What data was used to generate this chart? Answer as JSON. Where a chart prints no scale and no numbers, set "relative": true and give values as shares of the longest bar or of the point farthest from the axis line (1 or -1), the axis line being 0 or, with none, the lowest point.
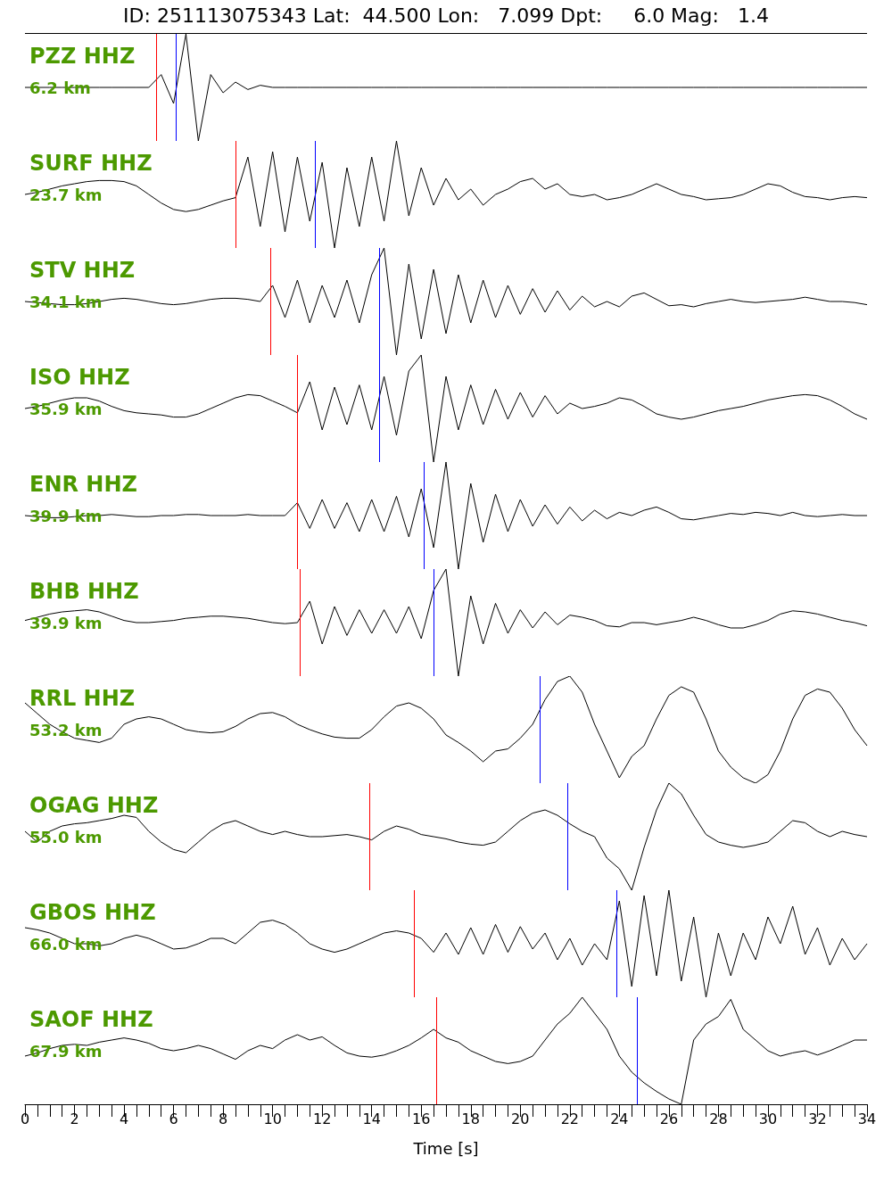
{
  "chart_data": [
    {
      "type": "line",
      "title": "PZZ HHZ",
      "subtitle": "6.2 km",
      "annotations": [
        "ID: 251113075343 Lat:  44.500 Lon:   7.099 Dpt:     6.0 Mag:   1.4"
      ],
      "relative": true,
      "tick_labels": false,
      "xlim": [
        0,
        34
      ],
      "x": [
        0,
        0.5,
        1,
        1.5,
        2,
        2.5,
        3,
        3.5,
        4,
        4.5,
        5,
        5.5,
        6,
        6.5,
        7,
        7.5,
        8,
        8.5,
        9,
        9.5,
        10,
        10.5,
        11,
        11.5,
        12,
        12.5,
        13,
        13.5,
        14,
        14.5,
        15,
        15.5,
        16,
        16.5,
        17,
        17.5,
        18,
        18.5,
        19,
        19.5,
        20,
        20.5,
        21,
        21.5,
        22,
        22.5,
        23,
        23.5,
        24,
        24.5,
        25,
        25.5,
        26,
        26.5,
        27,
        27.5,
        28,
        28.5,
        29,
        29.5,
        30,
        30.5,
        31,
        31.5,
        32,
        32.5,
        33,
        33.5,
        34
      ],
      "series": [
        {
          "color": "#000000",
          "values": [
            0.5,
            0.5,
            0.5,
            0.5,
            0.5,
            0.5,
            0.5,
            0.5,
            0.5,
            0.5,
            0.5,
            0.62,
            0.35,
            1.0,
            0.0,
            0.62,
            0.45,
            0.55,
            0.48,
            0.52,
            0.5,
            0.5,
            0.5,
            0.5,
            0.5,
            0.5,
            0.5,
            0.5,
            0.5,
            0.5,
            0.5,
            0.5,
            0.5,
            0.5,
            0.5,
            0.5,
            0.5,
            0.5,
            0.5,
            0.5,
            0.5,
            0.5,
            0.5,
            0.5,
            0.5,
            0.5,
            0.5,
            0.5,
            0.5,
            0.5,
            0.5,
            0.5,
            0.5,
            0.5,
            0.5,
            0.5,
            0.5,
            0.5,
            0.5,
            0.5,
            0.5,
            0.5,
            0.5,
            0.5,
            0.5,
            0.5,
            0.5,
            0.5,
            0.5
          ]
        }
      ],
      "ref_lines": [
        {
          "axis": "x",
          "value": 5.3,
          "color": "#ff0000"
        },
        {
          "axis": "x",
          "value": 6.1,
          "color": "#0000ff"
        }
      ]
    },
    {
      "type": "line",
      "title": "SURF HHZ",
      "subtitle": "23.7 km",
      "relative": true,
      "tick_labels": false,
      "xlim": [
        0,
        34
      ],
      "x": [
        0,
        0.5,
        1,
        1.5,
        2,
        2.5,
        3,
        3.5,
        4,
        4.5,
        5,
        5.5,
        6,
        6.5,
        7,
        7.5,
        8,
        8.5,
        9,
        9.5,
        10,
        10.5,
        11,
        11.5,
        12,
        12.5,
        13,
        13.5,
        14,
        14.5,
        15,
        15.5,
        16,
        16.5,
        17,
        17.5,
        18,
        18.5,
        19,
        19.5,
        20,
        20.5,
        21,
        21.5,
        22,
        22.5,
        23,
        23.5,
        24,
        24.5,
        25,
        25.5,
        26,
        26.5,
        27,
        27.5,
        28,
        28.5,
        29,
        29.5,
        30,
        30.5,
        31,
        31.5,
        32,
        32.5,
        33,
        33.5,
        34
      ],
      "series": [
        {
          "color": "#000000",
          "values": [
            0.5,
            0.52,
            0.55,
            0.58,
            0.6,
            0.62,
            0.63,
            0.63,
            0.62,
            0.58,
            0.5,
            0.42,
            0.36,
            0.34,
            0.36,
            0.4,
            0.44,
            0.47,
            0.85,
            0.2,
            0.9,
            0.15,
            0.85,
            0.25,
            0.8,
            0.0,
            0.75,
            0.2,
            0.85,
            0.25,
            1.0,
            0.3,
            0.75,
            0.4,
            0.65,
            0.45,
            0.55,
            0.4,
            0.5,
            0.55,
            0.62,
            0.65,
            0.55,
            0.6,
            0.5,
            0.48,
            0.5,
            0.45,
            0.47,
            0.5,
            0.55,
            0.6,
            0.55,
            0.5,
            0.48,
            0.45,
            0.46,
            0.47,
            0.5,
            0.55,
            0.6,
            0.58,
            0.52,
            0.48,
            0.47,
            0.45,
            0.47,
            0.48,
            0.47
          ]
        }
      ],
      "ref_lines": [
        {
          "axis": "x",
          "value": 8.5,
          "color": "#ff0000"
        },
        {
          "axis": "x",
          "value": 11.7,
          "color": "#0000ff"
        }
      ]
    },
    {
      "type": "line",
      "title": "STV HHZ",
      "subtitle": "34.1 km",
      "relative": true,
      "tick_labels": false,
      "xlim": [
        0,
        34
      ],
      "x": [
        0,
        0.5,
        1,
        1.5,
        2,
        2.5,
        3,
        3.5,
        4,
        4.5,
        5,
        5.5,
        6,
        6.5,
        7,
        7.5,
        8,
        8.5,
        9,
        9.5,
        10,
        10.5,
        11,
        11.5,
        12,
        12.5,
        13,
        13.5,
        14,
        14.5,
        15,
        15.5,
        16,
        16.5,
        17,
        17.5,
        18,
        18.5,
        19,
        19.5,
        20,
        20.5,
        21,
        21.5,
        22,
        22.5,
        23,
        23.5,
        24,
        24.5,
        25,
        25.5,
        26,
        26.5,
        27,
        27.5,
        28,
        28.5,
        29,
        29.5,
        30,
        30.5,
        31,
        31.5,
        32,
        32.5,
        33,
        33.5,
        34
      ],
      "series": [
        {
          "color": "#000000",
          "values": [
            0.5,
            0.49,
            0.48,
            0.47,
            0.47,
            0.48,
            0.5,
            0.52,
            0.53,
            0.52,
            0.5,
            0.48,
            0.47,
            0.48,
            0.5,
            0.52,
            0.53,
            0.53,
            0.52,
            0.5,
            0.65,
            0.35,
            0.7,
            0.3,
            0.65,
            0.35,
            0.7,
            0.3,
            0.75,
            1.0,
            0.0,
            0.85,
            0.15,
            0.8,
            0.2,
            0.75,
            0.3,
            0.7,
            0.35,
            0.65,
            0.38,
            0.62,
            0.4,
            0.6,
            0.42,
            0.55,
            0.45,
            0.5,
            0.45,
            0.55,
            0.58,
            0.52,
            0.46,
            0.47,
            0.45,
            0.48,
            0.5,
            0.52,
            0.5,
            0.49,
            0.5,
            0.51,
            0.52,
            0.54,
            0.52,
            0.5,
            0.5,
            0.49,
            0.47
          ]
        }
      ],
      "ref_lines": [
        {
          "axis": "x",
          "value": 9.9,
          "color": "#ff0000"
        },
        {
          "axis": "x",
          "value": 14.3,
          "color": "#0000ff"
        }
      ]
    },
    {
      "type": "line",
      "title": "ISO HHZ",
      "subtitle": "35.9 km",
      "relative": true,
      "tick_labels": false,
      "xlim": [
        0,
        34
      ],
      "x": [
        0,
        0.5,
        1,
        1.5,
        2,
        2.5,
        3,
        3.5,
        4,
        4.5,
        5,
        5.5,
        6,
        6.5,
        7,
        7.5,
        8,
        8.5,
        9,
        9.5,
        10,
        10.5,
        11,
        11.5,
        12,
        12.5,
        13,
        13.5,
        14,
        14.5,
        15,
        15.5,
        16,
        16.5,
        17,
        17.5,
        18,
        18.5,
        19,
        19.5,
        20,
        20.5,
        21,
        21.5,
        22,
        22.5,
        23,
        23.5,
        24,
        24.5,
        25,
        25.5,
        26,
        26.5,
        27,
        27.5,
        28,
        28.5,
        29,
        29.5,
        30,
        30.5,
        31,
        31.5,
        32,
        32.5,
        33,
        33.5,
        34
      ],
      "series": [
        {
          "color": "#000000",
          "values": [
            0.5,
            0.52,
            0.55,
            0.58,
            0.6,
            0.6,
            0.57,
            0.52,
            0.48,
            0.46,
            0.45,
            0.44,
            0.42,
            0.42,
            0.45,
            0.5,
            0.55,
            0.6,
            0.63,
            0.62,
            0.57,
            0.52,
            0.46,
            0.75,
            0.3,
            0.7,
            0.35,
            0.72,
            0.3,
            0.8,
            0.25,
            0.85,
            1.0,
            0.0,
            0.8,
            0.3,
            0.72,
            0.35,
            0.68,
            0.4,
            0.65,
            0.42,
            0.62,
            0.45,
            0.55,
            0.5,
            0.52,
            0.55,
            0.6,
            0.58,
            0.52,
            0.45,
            0.42,
            0.4,
            0.42,
            0.45,
            0.48,
            0.5,
            0.52,
            0.55,
            0.58,
            0.6,
            0.62,
            0.63,
            0.62,
            0.58,
            0.52,
            0.45,
            0.4
          ]
        }
      ],
      "ref_lines": [
        {
          "axis": "x",
          "value": 11.0,
          "color": "#ff0000"
        },
        {
          "axis": "x",
          "value": 14.3,
          "color": "#0000ff"
        }
      ]
    },
    {
      "type": "line",
      "title": "ENR HHZ",
      "subtitle": "39.9 km",
      "relative": true,
      "tick_labels": false,
      "xlim": [
        0,
        34
      ],
      "x": [
        0,
        0.5,
        1,
        1.5,
        2,
        2.5,
        3,
        3.5,
        4,
        4.5,
        5,
        5.5,
        6,
        6.5,
        7,
        7.5,
        8,
        8.5,
        9,
        9.5,
        10,
        10.5,
        11,
        11.5,
        12,
        12.5,
        13,
        13.5,
        14,
        14.5,
        15,
        15.5,
        16,
        16.5,
        17,
        17.5,
        18,
        18.5,
        19,
        19.5,
        20,
        20.5,
        21,
        21.5,
        22,
        22.5,
        23,
        23.5,
        24,
        24.5,
        25,
        25.5,
        26,
        26.5,
        27,
        27.5,
        28,
        28.5,
        29,
        29.5,
        30,
        30.5,
        31,
        31.5,
        32,
        32.5,
        33,
        33.5,
        34
      ],
      "series": [
        {
          "color": "#000000",
          "values": [
            0.5,
            0.49,
            0.48,
            0.48,
            0.49,
            0.5,
            0.5,
            0.51,
            0.5,
            0.49,
            0.49,
            0.5,
            0.5,
            0.51,
            0.51,
            0.5,
            0.5,
            0.5,
            0.51,
            0.5,
            0.5,
            0.5,
            0.62,
            0.38,
            0.65,
            0.38,
            0.62,
            0.35,
            0.65,
            0.35,
            0.68,
            0.3,
            0.75,
            0.2,
            1.0,
            0.0,
            0.8,
            0.25,
            0.7,
            0.35,
            0.65,
            0.4,
            0.6,
            0.42,
            0.58,
            0.45,
            0.55,
            0.47,
            0.53,
            0.5,
            0.55,
            0.58,
            0.53,
            0.47,
            0.46,
            0.48,
            0.5,
            0.52,
            0.51,
            0.53,
            0.52,
            0.5,
            0.53,
            0.5,
            0.49,
            0.5,
            0.51,
            0.5,
            0.5
          ]
        }
      ],
      "ref_lines": [
        {
          "axis": "x",
          "value": 11.0,
          "color": "#ff0000"
        },
        {
          "axis": "x",
          "value": 16.1,
          "color": "#0000ff"
        }
      ]
    },
    {
      "type": "line",
      "title": "BHB HHZ",
      "subtitle": "39.9 km",
      "relative": true,
      "tick_labels": false,
      "xlim": [
        0,
        34
      ],
      "x": [
        0,
        0.5,
        1,
        1.5,
        2,
        2.5,
        3,
        3.5,
        4,
        4.5,
        5,
        5.5,
        6,
        6.5,
        7,
        7.5,
        8,
        8.5,
        9,
        9.5,
        10,
        10.5,
        11,
        11.5,
        12,
        12.5,
        13,
        13.5,
        14,
        14.5,
        15,
        15.5,
        16,
        16.5,
        17,
        17.5,
        18,
        18.5,
        19,
        19.5,
        20,
        20.5,
        21,
        21.5,
        22,
        22.5,
        23,
        23.5,
        24,
        24.5,
        25,
        25.5,
        26,
        26.5,
        27,
        27.5,
        28,
        28.5,
        29,
        29.5,
        30,
        30.5,
        31,
        31.5,
        32,
        32.5,
        33,
        33.5,
        34
      ],
      "series": [
        {
          "color": "#000000",
          "values": [
            0.52,
            0.55,
            0.58,
            0.6,
            0.61,
            0.62,
            0.6,
            0.56,
            0.52,
            0.5,
            0.5,
            0.51,
            0.52,
            0.54,
            0.55,
            0.56,
            0.56,
            0.55,
            0.54,
            0.52,
            0.5,
            0.49,
            0.5,
            0.7,
            0.3,
            0.65,
            0.38,
            0.62,
            0.4,
            0.62,
            0.4,
            0.65,
            0.35,
            0.8,
            1.0,
            0.0,
            0.75,
            0.3,
            0.68,
            0.4,
            0.62,
            0.45,
            0.6,
            0.48,
            0.57,
            0.55,
            0.52,
            0.47,
            0.46,
            0.5,
            0.5,
            0.48,
            0.5,
            0.52,
            0.55,
            0.52,
            0.48,
            0.45,
            0.45,
            0.48,
            0.52,
            0.58,
            0.61,
            0.6,
            0.58,
            0.55,
            0.52,
            0.5,
            0.47
          ]
        }
      ],
      "ref_lines": [
        {
          "axis": "x",
          "value": 11.1,
          "color": "#ff0000"
        },
        {
          "axis": "x",
          "value": 16.5,
          "color": "#0000ff"
        }
      ]
    },
    {
      "type": "line",
      "title": "RRL HHZ",
      "subtitle": "53.2 km",
      "relative": true,
      "tick_labels": false,
      "xlim": [
        0,
        34
      ],
      "x": [
        0,
        0.5,
        1,
        1.5,
        2,
        2.5,
        3,
        3.5,
        4,
        4.5,
        5,
        5.5,
        6,
        6.5,
        7,
        7.5,
        8,
        8.5,
        9,
        9.5,
        10,
        10.5,
        11,
        11.5,
        12,
        12.5,
        13,
        13.5,
        14,
        14.5,
        15,
        15.5,
        16,
        16.5,
        17,
        17.5,
        18,
        18.5,
        19,
        19.5,
        20,
        20.5,
        21,
        21.5,
        22,
        22.5,
        23,
        23.5,
        24,
        24.5,
        25,
        25.5,
        26,
        26.5,
        27,
        27.5,
        28,
        28.5,
        29,
        29.5,
        30,
        30.5,
        31,
        31.5,
        32,
        32.5,
        33,
        33.5,
        34
      ],
      "series": [
        {
          "color": "#000000",
          "values": [
            0.75,
            0.65,
            0.55,
            0.48,
            0.42,
            0.4,
            0.38,
            0.42,
            0.55,
            0.6,
            0.62,
            0.6,
            0.55,
            0.5,
            0.48,
            0.47,
            0.48,
            0.53,
            0.6,
            0.65,
            0.66,
            0.62,
            0.55,
            0.5,
            0.46,
            0.43,
            0.42,
            0.42,
            0.5,
            0.62,
            0.72,
            0.75,
            0.7,
            0.6,
            0.45,
            0.38,
            0.3,
            0.2,
            0.3,
            0.32,
            0.42,
            0.55,
            0.78,
            0.95,
            1.0,
            0.85,
            0.55,
            0.3,
            0.05,
            0.25,
            0.35,
            0.6,
            0.82,
            0.9,
            0.85,
            0.6,
            0.3,
            0.15,
            0.05,
            0.0,
            0.08,
            0.3,
            0.6,
            0.82,
            0.88,
            0.85,
            0.7,
            0.5,
            0.35
          ]
        }
      ],
      "ref_lines": [
        {
          "axis": "x",
          "value": 20.8,
          "color": "#0000ff"
        }
      ]
    },
    {
      "type": "line",
      "title": "OGAG HHZ",
      "subtitle": "55.0 km",
      "relative": true,
      "tick_labels": false,
      "xlim": [
        0,
        34
      ],
      "x": [
        0,
        0.5,
        1,
        1.5,
        2,
        2.5,
        3,
        3.5,
        4,
        4.5,
        5,
        5.5,
        6,
        6.5,
        7,
        7.5,
        8,
        8.5,
        9,
        9.5,
        10,
        10.5,
        11,
        11.5,
        12,
        12.5,
        13,
        13.5,
        14,
        14.5,
        15,
        15.5,
        16,
        16.5,
        17,
        17.5,
        18,
        18.5,
        19,
        19.5,
        20,
        20.5,
        21,
        21.5,
        22,
        22.5,
        23,
        23.5,
        24,
        24.5,
        25,
        25.5,
        26,
        26.5,
        27,
        27.5,
        28,
        28.5,
        29,
        29.5,
        30,
        30.5,
        31,
        31.5,
        32,
        32.5,
        33,
        33.5,
        34
      ],
      "series": [
        {
          "color": "#000000",
          "values": [
            0.55,
            0.45,
            0.55,
            0.6,
            0.62,
            0.63,
            0.65,
            0.67,
            0.7,
            0.68,
            0.55,
            0.45,
            0.38,
            0.35,
            0.45,
            0.55,
            0.62,
            0.65,
            0.6,
            0.55,
            0.52,
            0.55,
            0.52,
            0.5,
            0.5,
            0.51,
            0.52,
            0.5,
            0.47,
            0.55,
            0.6,
            0.57,
            0.52,
            0.5,
            0.48,
            0.45,
            0.43,
            0.42,
            0.45,
            0.55,
            0.65,
            0.72,
            0.75,
            0.7,
            0.62,
            0.55,
            0.5,
            0.3,
            0.2,
            0.0,
            0.4,
            0.75,
            1.0,
            0.9,
            0.7,
            0.52,
            0.45,
            0.42,
            0.4,
            0.42,
            0.45,
            0.55,
            0.65,
            0.63,
            0.55,
            0.5,
            0.55,
            0.52,
            0.5
          ]
        }
      ],
      "ref_lines": [
        {
          "axis": "x",
          "value": 13.9,
          "color": "#ff0000"
        },
        {
          "axis": "x",
          "value": 21.9,
          "color": "#0000ff"
        }
      ]
    },
    {
      "type": "line",
      "title": "GBOS HHZ",
      "subtitle": "66.0 km",
      "relative": true,
      "tick_labels": false,
      "xlim": [
        0,
        34
      ],
      "x": [
        0,
        0.5,
        1,
        1.5,
        2,
        2.5,
        3,
        3.5,
        4,
        4.5,
        5,
        5.5,
        6,
        6.5,
        7,
        7.5,
        8,
        8.5,
        9,
        9.5,
        10,
        10.5,
        11,
        11.5,
        12,
        12.5,
        13,
        13.5,
        14,
        14.5,
        15,
        15.5,
        16,
        16.5,
        17,
        17.5,
        18,
        18.5,
        19,
        19.5,
        20,
        20.5,
        21,
        21.5,
        22,
        22.5,
        23,
        23.5,
        24,
        24.5,
        25,
        25.5,
        26,
        26.5,
        27,
        27.5,
        28,
        28.5,
        29,
        29.5,
        30,
        30.5,
        31,
        31.5,
        32,
        32.5,
        33,
        33.5,
        34
      ],
      "series": [
        {
          "color": "#000000",
          "values": [
            0.65,
            0.63,
            0.6,
            0.55,
            0.5,
            0.5,
            0.48,
            0.5,
            0.55,
            0.58,
            0.55,
            0.5,
            0.45,
            0.46,
            0.5,
            0.55,
            0.55,
            0.5,
            0.6,
            0.7,
            0.72,
            0.68,
            0.6,
            0.5,
            0.45,
            0.42,
            0.45,
            0.5,
            0.55,
            0.6,
            0.62,
            0.6,
            0.55,
            0.42,
            0.6,
            0.4,
            0.65,
            0.4,
            0.68,
            0.42,
            0.66,
            0.45,
            0.6,
            0.35,
            0.55,
            0.3,
            0.5,
            0.35,
            0.9,
            0.1,
            0.95,
            0.2,
            1.0,
            0.15,
            0.75,
            0.0,
            0.6,
            0.2,
            0.6,
            0.35,
            0.75,
            0.5,
            0.85,
            0.4,
            0.65,
            0.3,
            0.55,
            0.35,
            0.5
          ]
        }
      ],
      "ref_lines": [
        {
          "axis": "x",
          "value": 15.7,
          "color": "#ff0000"
        },
        {
          "axis": "x",
          "value": 23.9,
          "color": "#0000ff"
        }
      ]
    },
    {
      "type": "line",
      "title": "SAOF HHZ",
      "subtitle": "67.9 km",
      "xlabel": "Time [s]",
      "relative": true,
      "tick_labels": "x",
      "xlim": [
        0,
        34
      ],
      "xticks": [
        0,
        {
          "value": 0.5,
          "label": null
        },
        {
          "value": 1,
          "label": null
        },
        {
          "value": 1.5,
          "label": null
        },
        2,
        {
          "value": 2.5,
          "label": null
        },
        {
          "value": 3,
          "label": null
        },
        {
          "value": 3.5,
          "label": null
        },
        4,
        {
          "value": 4.5,
          "label": null
        },
        {
          "value": 5,
          "label": null
        },
        {
          "value": 5.5,
          "label": null
        },
        6,
        {
          "value": 6.5,
          "label": null
        },
        {
          "value": 7,
          "label": null
        },
        {
          "value": 7.5,
          "label": null
        },
        8,
        {
          "value": 8.5,
          "label": null
        },
        {
          "value": 9,
          "label": null
        },
        {
          "value": 9.5,
          "label": null
        },
        10,
        {
          "value": 10.5,
          "label": null
        },
        {
          "value": 11,
          "label": null
        },
        {
          "value": 11.5,
          "label": null
        },
        12,
        {
          "value": 12.5,
          "label": null
        },
        {
          "value": 13,
          "label": null
        },
        {
          "value": 13.5,
          "label": null
        },
        14,
        {
          "value": 14.5,
          "label": null
        },
        {
          "value": 15,
          "label": null
        },
        {
          "value": 15.5,
          "label": null
        },
        16,
        {
          "value": 16.5,
          "label": null
        },
        {
          "value": 17,
          "label": null
        },
        {
          "value": 17.5,
          "label": null
        },
        18,
        {
          "value": 18.5,
          "label": null
        },
        {
          "value": 19,
          "label": null
        },
        {
          "value": 19.5,
          "label": null
        },
        20,
        {
          "value": 20.5,
          "label": null
        },
        {
          "value": 21,
          "label": null
        },
        {
          "value": 21.5,
          "label": null
        },
        22,
        {
          "value": 22.5,
          "label": null
        },
        {
          "value": 23,
          "label": null
        },
        {
          "value": 23.5,
          "label": null
        },
        24,
        {
          "value": 24.5,
          "label": null
        },
        {
          "value": 25,
          "label": null
        },
        {
          "value": 25.5,
          "label": null
        },
        26,
        {
          "value": 26.5,
          "label": null
        },
        {
          "value": 27,
          "label": null
        },
        {
          "value": 27.5,
          "label": null
        },
        28,
        {
          "value": 28.5,
          "label": null
        },
        {
          "value": 29,
          "label": null
        },
        {
          "value": 29.5,
          "label": null
        },
        30,
        {
          "value": 30.5,
          "label": null
        },
        {
          "value": 31,
          "label": null
        },
        {
          "value": 31.5,
          "label": null
        },
        32,
        {
          "value": 32.5,
          "label": null
        },
        {
          "value": 33,
          "label": null
        },
        {
          "value": 33.5,
          "label": null
        },
        34
      ],
      "x": [
        0,
        0.5,
        1,
        1.5,
        2,
        2.5,
        3,
        3.5,
        4,
        4.5,
        5,
        5.5,
        6,
        6.5,
        7,
        7.5,
        8,
        8.5,
        9,
        9.5,
        10,
        10.5,
        11,
        11.5,
        12,
        12.5,
        13,
        13.5,
        14,
        14.5,
        15,
        15.5,
        16,
        16.5,
        17,
        17.5,
        18,
        18.5,
        19,
        19.5,
        20,
        20.5,
        21,
        21.5,
        22,
        22.5,
        23,
        23.5,
        24,
        24.5,
        25,
        25.5,
        26,
        26.5,
        27,
        27.5,
        28,
        28.5,
        29,
        29.5,
        30,
        30.5,
        31,
        31.5,
        32,
        32.5,
        33,
        33.5,
        34
      ],
      "series": [
        {
          "color": "#000000",
          "values": [
            0.45,
            0.48,
            0.52,
            0.55,
            0.56,
            0.55,
            0.58,
            0.6,
            0.62,
            0.6,
            0.57,
            0.52,
            0.5,
            0.52,
            0.55,
            0.52,
            0.47,
            0.42,
            0.5,
            0.55,
            0.52,
            0.6,
            0.65,
            0.6,
            0.63,
            0.55,
            0.48,
            0.45,
            0.44,
            0.46,
            0.5,
            0.55,
            0.62,
            0.7,
            0.62,
            0.58,
            0.5,
            0.45,
            0.4,
            0.38,
            0.4,
            0.45,
            0.6,
            0.75,
            0.85,
            1.0,
            0.85,
            0.7,
            0.45,
            0.3,
            0.2,
            0.12,
            0.05,
            0.0,
            0.6,
            0.75,
            0.82,
            0.98,
            0.7,
            0.6,
            0.5,
            0.45,
            0.48,
            0.5,
            0.46,
            0.5,
            0.55,
            0.6,
            0.6
          ]
        }
      ],
      "ref_lines": [
        {
          "axis": "x",
          "value": 16.6,
          "color": "#ff0000"
        },
        {
          "axis": "x",
          "value": 24.7,
          "color": "#0000ff"
        }
      ]
    }
  ]
}
